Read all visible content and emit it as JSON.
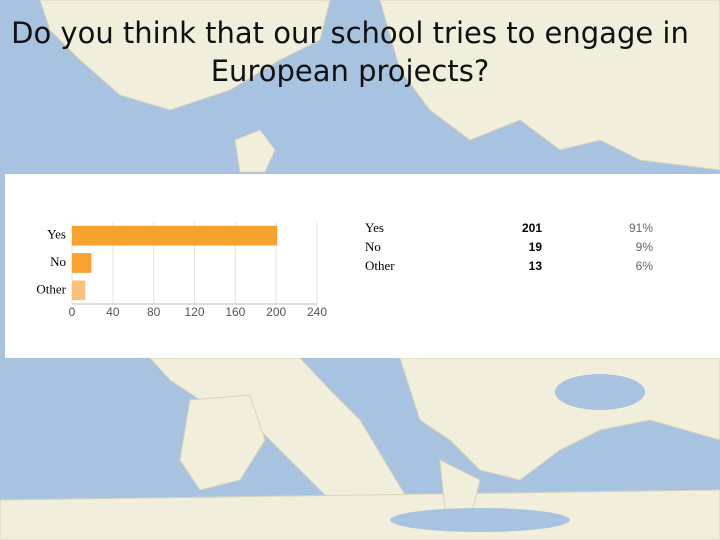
{
  "title": "Do you think that our school tries to engage in European projects?",
  "chart_data": {
    "type": "bar",
    "orientation": "horizontal",
    "categories": [
      "Yes",
      "No",
      "Other"
    ],
    "values": [
      201,
      19,
      13
    ],
    "colors": [
      "#f7a22f",
      "#f7a22f",
      "#f9c27c"
    ],
    "percentages": {
      "values": [
        91,
        9,
        6
      ],
      "value_labels": [
        "91%",
        "9%",
        "6%"
      ]
    },
    "xlim": [
      0,
      240
    ],
    "xticks": [
      0,
      40,
      80,
      120,
      160,
      200,
      240
    ],
    "grid": true
  }
}
